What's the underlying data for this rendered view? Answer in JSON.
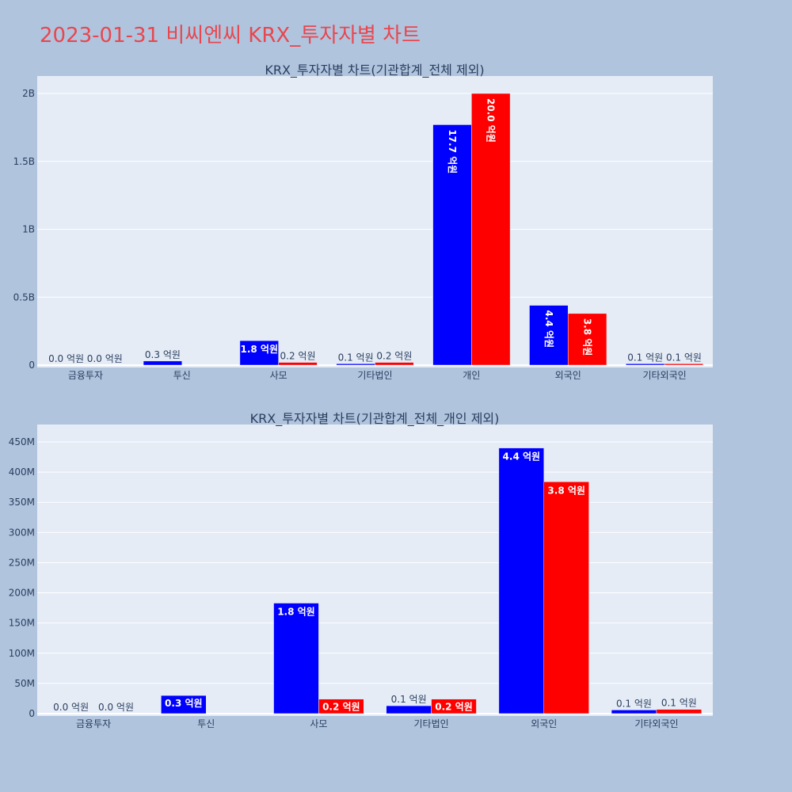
{
  "page": {
    "title": "2023-01-31 비씨엔씨 KRX_투자자별 차트"
  },
  "colors": {
    "series_a": "#0000ff",
    "series_b": "#ff0000",
    "plot_bg": "#e5ecf6",
    "page_bg": "#b0c4de",
    "title": "#e8474f"
  },
  "chart_data": [
    {
      "type": "bar",
      "title": "KRX_투자자별 차트(기관합계_전체 제외)",
      "categories": [
        "금융투자",
        "투신",
        "사모",
        "기타법인",
        "개인",
        "외국인",
        "기타외국인"
      ],
      "ylim": [
        0,
        2000000000
      ],
      "yticks": [
        0,
        500000000,
        1000000000,
        1500000000,
        2000000000
      ],
      "yticklabels": [
        "0",
        "0.5B",
        "1B",
        "1.5B",
        "2B"
      ],
      "series": [
        {
          "values": [
            0,
            30000000,
            180000000,
            10000000,
            1770000000,
            440000000,
            10000000
          ],
          "labels": [
            "0.0 억원",
            "0.3 억원",
            "1.8 억원",
            "0.1 억원",
            "17.7 억원",
            "4.4 억원",
            "0.1 억원"
          ]
        },
        {
          "values": [
            0,
            0,
            20000000,
            20000000,
            2000000000,
            380000000,
            10000000
          ],
          "labels": [
            "0.0 억원",
            "",
            "0.2 억원",
            "0.2 억원",
            "20.0 억원",
            "3.8 억원",
            "0.1 억원"
          ]
        }
      ],
      "grid": true
    },
    {
      "type": "bar",
      "title": "KRX_투자자별 차트(기관합계_전체_개인 제외)",
      "categories": [
        "금융투자",
        "투신",
        "사모",
        "기타법인",
        "외국인",
        "기타외국인"
      ],
      "ylim": [
        0,
        450000000
      ],
      "yticks": [
        0,
        50000000,
        100000000,
        150000000,
        200000000,
        250000000,
        300000000,
        350000000,
        400000000,
        450000000
      ],
      "yticklabels": [
        "0",
        "50M",
        "100M",
        "150M",
        "200M",
        "250M",
        "300M",
        "350M",
        "400M",
        "450M"
      ],
      "series": [
        {
          "values": [
            0,
            30000000,
            183000000,
            13000000,
            440000000,
            6000000
          ],
          "labels": [
            "0.0 억원",
            "0.3 억원",
            "1.8 억원",
            "0.1 억원",
            "4.4 억원",
            "0.1 억원"
          ]
        },
        {
          "values": [
            0,
            0,
            24000000,
            24000000,
            384000000,
            7000000
          ],
          "labels": [
            "0.0 억원",
            "",
            "0.2 억원",
            "0.2 억원",
            "3.8 억원",
            "0.1 억원"
          ]
        }
      ],
      "grid": true
    }
  ]
}
